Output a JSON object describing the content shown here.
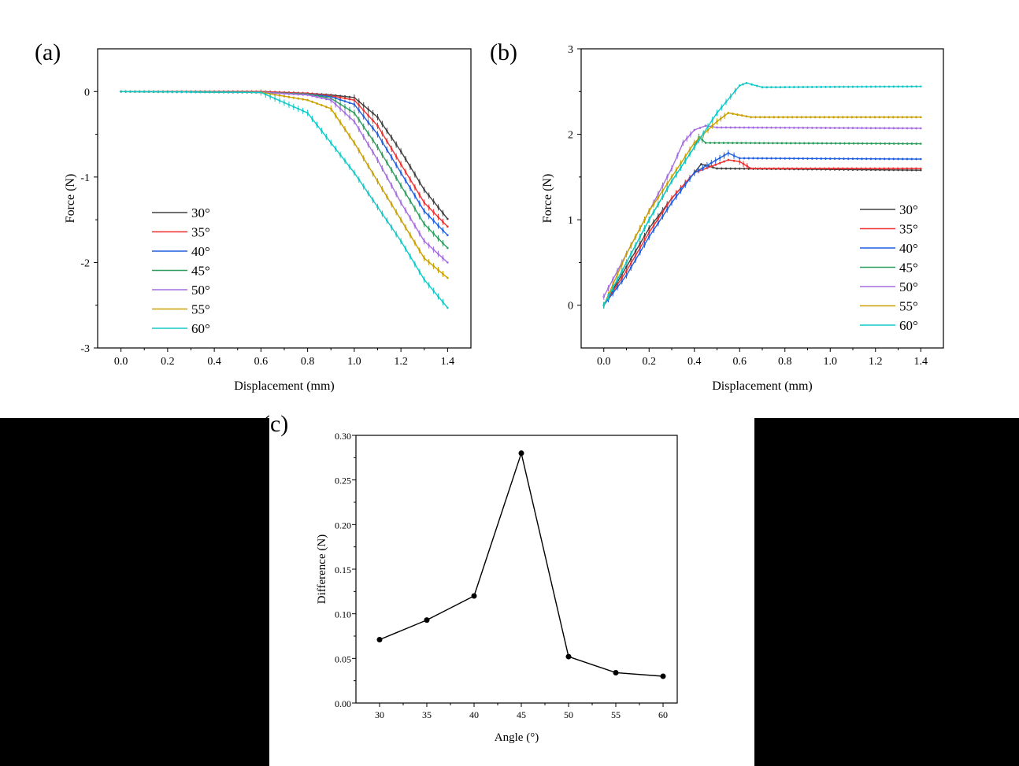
{
  "chart_data": [
    {
      "panel_label": "(a)",
      "type": "line",
      "xlabel": "Displacement (mm)",
      "ylabel": "Force (N)",
      "xlim": [
        -0.1,
        1.5
      ],
      "ylim": [
        -3,
        0.5
      ],
      "xticks": [
        "0.0",
        "0.2",
        "0.4",
        "0.6",
        "0.8",
        "1.0",
        "1.2",
        "1.4"
      ],
      "yticks": [
        "0",
        "-1",
        "-2",
        "-3"
      ],
      "error_bars": true,
      "grid": false,
      "legend_position": "bottom-left",
      "x": [
        0,
        0.6,
        0.8,
        0.9,
        1.0,
        1.1,
        1.2,
        1.3,
        1.4
      ],
      "series": [
        {
          "name": "30°",
          "color": "#404040",
          "values": [
            0,
            0,
            -0.02,
            -0.04,
            -0.07,
            -0.3,
            -0.7,
            -1.15,
            -1.49
          ]
        },
        {
          "name": "35°",
          "color": "#f03030",
          "values": [
            0,
            0,
            -0.02,
            -0.05,
            -0.1,
            -0.4,
            -0.85,
            -1.3,
            -1.58
          ]
        },
        {
          "name": "40°",
          "color": "#1f5fe0",
          "values": [
            0,
            -0.01,
            -0.03,
            -0.06,
            -0.15,
            -0.5,
            -0.95,
            -1.4,
            -1.68
          ]
        },
        {
          "name": "45°",
          "color": "#2e9e5e",
          "values": [
            0,
            -0.01,
            -0.03,
            -0.08,
            -0.25,
            -0.65,
            -1.1,
            -1.55,
            -1.83
          ]
        },
        {
          "name": "50°",
          "color": "#a66ee0",
          "values": [
            0,
            -0.01,
            -0.04,
            -0.1,
            -0.35,
            -0.8,
            -1.3,
            -1.75,
            -2.0
          ]
        },
        {
          "name": "55°",
          "color": "#c9a000",
          "values": [
            0,
            -0.01,
            -0.1,
            -0.2,
            -0.6,
            -1.05,
            -1.5,
            -1.95,
            -2.18
          ]
        },
        {
          "name": "60°",
          "color": "#10c8c8",
          "values": [
            0,
            -0.01,
            -0.25,
            -0.6,
            -0.95,
            -1.35,
            -1.75,
            -2.2,
            -2.53
          ]
        }
      ]
    },
    {
      "panel_label": "(b)",
      "type": "line",
      "xlabel": "Displacement (mm)",
      "ylabel": "Force (N)",
      "xlim": [
        -0.1,
        1.5
      ],
      "ylim": [
        -0.5,
        3
      ],
      "xticks": [
        "0.0",
        "0.2",
        "0.4",
        "0.6",
        "0.8",
        "1.0",
        "1.2",
        "1.4"
      ],
      "yticks": [
        "0",
        "1",
        "2",
        "3"
      ],
      "error_bars": true,
      "grid": false,
      "legend_position": "bottom-right",
      "series": [
        {
          "name": "30°",
          "color": "#404040",
          "points": [
            [
              0,
              0
            ],
            [
              0.1,
              0.45
            ],
            [
              0.2,
              0.9
            ],
            [
              0.3,
              1.25
            ],
            [
              0.4,
              1.55
            ],
            [
              0.43,
              1.65
            ],
            [
              0.5,
              1.6
            ],
            [
              1.4,
              1.58
            ]
          ]
        },
        {
          "name": "35°",
          "color": "#f03030",
          "points": [
            [
              0,
              0
            ],
            [
              0.1,
              0.4
            ],
            [
              0.2,
              0.85
            ],
            [
              0.3,
              1.25
            ],
            [
              0.4,
              1.55
            ],
            [
              0.55,
              1.7
            ],
            [
              0.6,
              1.68
            ],
            [
              0.65,
              1.6
            ],
            [
              1.4,
              1.6
            ]
          ]
        },
        {
          "name": "40°",
          "color": "#1f5fe0",
          "points": [
            [
              0,
              0
            ],
            [
              0.1,
              0.35
            ],
            [
              0.2,
              0.8
            ],
            [
              0.3,
              1.2
            ],
            [
              0.4,
              1.55
            ],
            [
              0.55,
              1.78
            ],
            [
              0.6,
              1.72
            ],
            [
              1.4,
              1.71
            ]
          ]
        },
        {
          "name": "45°",
          "color": "#2e9e5e",
          "points": [
            [
              0,
              0
            ],
            [
              0.1,
              0.5
            ],
            [
              0.2,
              1.0
            ],
            [
              0.3,
              1.45
            ],
            [
              0.4,
              1.85
            ],
            [
              0.42,
              1.97
            ],
            [
              0.45,
              1.9
            ],
            [
              1.4,
              1.89
            ]
          ]
        },
        {
          "name": "50°",
          "color": "#a66ee0",
          "points": [
            [
              0,
              0.1
            ],
            [
              0.1,
              0.6
            ],
            [
              0.2,
              1.1
            ],
            [
              0.3,
              1.6
            ],
            [
              0.35,
              1.9
            ],
            [
              0.4,
              2.05
            ],
            [
              0.45,
              2.1
            ],
            [
              0.5,
              2.08
            ],
            [
              1.4,
              2.07
            ]
          ]
        },
        {
          "name": "55°",
          "color": "#c9a000",
          "points": [
            [
              0,
              0
            ],
            [
              0.1,
              0.6
            ],
            [
              0.2,
              1.1
            ],
            [
              0.3,
              1.5
            ],
            [
              0.4,
              1.9
            ],
            [
              0.5,
              2.15
            ],
            [
              0.55,
              2.25
            ],
            [
              0.65,
              2.2
            ],
            [
              1.4,
              2.2
            ]
          ]
        },
        {
          "name": "60°",
          "color": "#10c8c8",
          "points": [
            [
              0,
              0
            ],
            [
              0.1,
              0.5
            ],
            [
              0.2,
              1.0
            ],
            [
              0.3,
              1.45
            ],
            [
              0.4,
              1.85
            ],
            [
              0.5,
              2.25
            ],
            [
              0.6,
              2.57
            ],
            [
              0.63,
              2.6
            ],
            [
              0.7,
              2.55
            ],
            [
              1.4,
              2.56
            ]
          ]
        }
      ]
    },
    {
      "panel_label": "(c)",
      "type": "line",
      "xlabel": "Angle (°)",
      "ylabel": "Difference (N)",
      "xlim": [
        27.5,
        61.5
      ],
      "ylim": [
        0,
        0.3
      ],
      "xticks": [
        "30",
        "35",
        "40",
        "45",
        "50",
        "55",
        "60"
      ],
      "yticks": [
        "0.00",
        "0.05",
        "0.10",
        "0.15",
        "0.20",
        "0.25",
        "0.30"
      ],
      "grid": false,
      "color": "#000000",
      "x": [
        30,
        35,
        40,
        45,
        50,
        55,
        60
      ],
      "values": [
        0.071,
        0.093,
        0.12,
        0.28,
        0.052,
        0.034,
        0.03
      ]
    }
  ]
}
